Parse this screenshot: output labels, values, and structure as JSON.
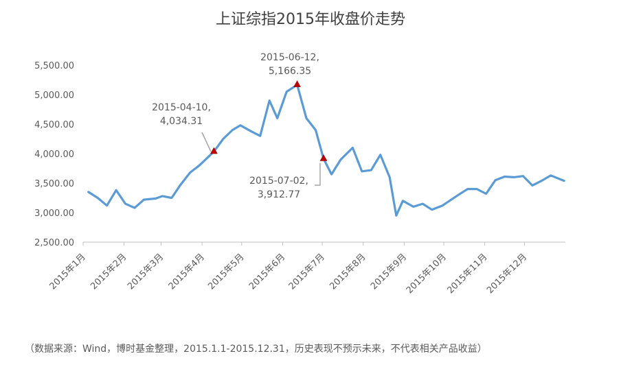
{
  "chart_data": {
    "type": "line",
    "title": "上证综指2015年收盘价走势",
    "xlabel": "",
    "ylabel": "",
    "ylim": [
      2500,
      5500
    ],
    "yticks": [
      "5,500.00",
      "5,000.00",
      "4,500.00",
      "4,000.00",
      "3,500.00",
      "3,000.00",
      "2,500.00"
    ],
    "ytick_values": [
      5500,
      5000,
      4500,
      4000,
      3500,
      3000,
      2500
    ],
    "categories": [
      "2015年1月",
      "2015年2月",
      "2015年3月",
      "2015年4月",
      "2015年5月",
      "2015年6月",
      "2015年7月",
      "2015年8月",
      "2015年9月",
      "2015年10月",
      "2015年11月",
      "2015年12月"
    ],
    "x": [
      "2015-01-05",
      "2015-01-12",
      "2015-01-19",
      "2015-01-26",
      "2015-02-02",
      "2015-02-09",
      "2015-02-16",
      "2015-02-25",
      "2015-03-02",
      "2015-03-09",
      "2015-03-16",
      "2015-03-23",
      "2015-03-30",
      "2015-04-10",
      "2015-04-17",
      "2015-04-24",
      "2015-04-30",
      "2015-05-08",
      "2015-05-15",
      "2015-05-22",
      "2015-05-28",
      "2015-06-04",
      "2015-06-12",
      "2015-06-19",
      "2015-06-26",
      "2015-07-02",
      "2015-07-08",
      "2015-07-15",
      "2015-07-24",
      "2015-07-31",
      "2015-08-07",
      "2015-08-14",
      "2015-08-21",
      "2015-08-26",
      "2015-08-31",
      "2015-09-08",
      "2015-09-15",
      "2015-09-22",
      "2015-09-30",
      "2015-10-12",
      "2015-10-19",
      "2015-10-26",
      "2015-11-02",
      "2015-11-09",
      "2015-11-16",
      "2015-11-23",
      "2015-11-30",
      "2015-12-07",
      "2015-12-14",
      "2015-12-21",
      "2015-12-31"
    ],
    "series": [
      {
        "values": [
          3350,
          3250,
          3120,
          3380,
          3150,
          3080,
          3220,
          3240,
          3280,
          3250,
          3480,
          3680,
          3800,
          4034.31,
          4250,
          4400,
          4480,
          4380,
          4300,
          4900,
          4600,
          5050,
          5166.35,
          4600,
          4400,
          3912.77,
          3650,
          3900,
          4100,
          3700,
          3720,
          3980,
          3600,
          2950,
          3200,
          3100,
          3150,
          3050,
          3120,
          3300,
          3400,
          3400,
          3320,
          3550,
          3610,
          3600,
          3620,
          3460,
          3540,
          3630,
          3540
        ],
        "color": "#5b9bd5"
      }
    ],
    "annotations": [
      {
        "date_label": "2015-04-10,",
        "value_label": "4,034.31",
        "x": "2015-04-10",
        "y": 4034.31
      },
      {
        "date_label": "2015-06-12,",
        "value_label": "5,166.35",
        "x": "2015-06-12",
        "y": 5166.35
      },
      {
        "date_label": "2015-07-02,",
        "value_label": "3,912.77",
        "x": "2015-07-02",
        "y": 3912.77
      }
    ],
    "grid": false,
    "legend": "none"
  },
  "source_note": "（数据来源：Wind，博时基金整理，2015.1.1-2015.12.31，历史表现不预示未来，不代表相关产品收益）",
  "colors": {
    "line": "#5b9bd5",
    "marker": "#c00000",
    "axis": "#bfbfbf",
    "text": "#595959"
  }
}
